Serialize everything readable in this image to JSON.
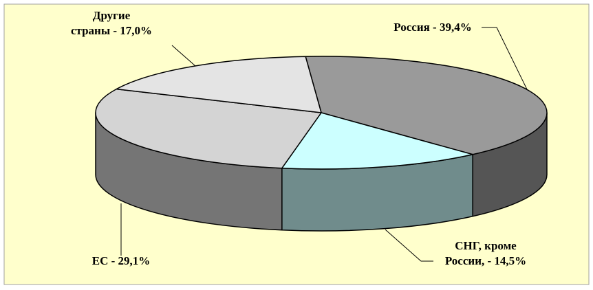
{
  "chart_data": {
    "type": "pie3d",
    "values": [
      39.4,
      14.5,
      29.1,
      17.0
    ],
    "value_labels": [
      "Россия - 39,4%",
      "СНГ, кроме\nРоссии, - 14,5%",
      "ЕС - 29,1%",
      "Другие\nстраны - 17,0%"
    ],
    "colors": [
      "#9a9a9a",
      "#ccffff",
      "#d4d4d4",
      "#e4e4e4"
    ]
  }
}
